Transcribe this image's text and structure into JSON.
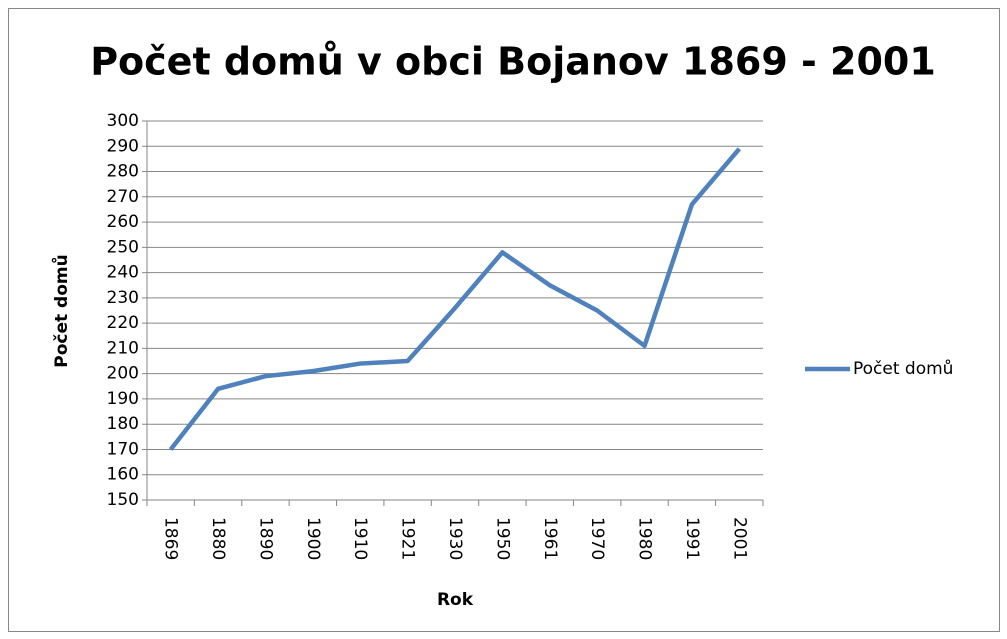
{
  "chart_data": {
    "type": "line",
    "title": "Počet domů v obci Bojanov 1869 - 2001",
    "x_label": "Rok",
    "y_label": "Počet domů",
    "categories": [
      "1869",
      "1880",
      "1890",
      "1900",
      "1910",
      "1921",
      "1930",
      "1950",
      "1961",
      "1970",
      "1980",
      "1991",
      "2001"
    ],
    "series": [
      {
        "name": "Počet domů",
        "color": "#4f81bd",
        "values": [
          170,
          194,
          199,
          201,
          204,
          205,
          226,
          248,
          235,
          225,
          211,
          267,
          289
        ]
      }
    ],
    "ylim": [
      150,
      300
    ],
    "yticks": [
      150,
      160,
      170,
      180,
      190,
      200,
      210,
      220,
      230,
      240,
      250,
      260,
      270,
      280,
      290,
      300
    ],
    "grid": true,
    "legend": "right"
  }
}
